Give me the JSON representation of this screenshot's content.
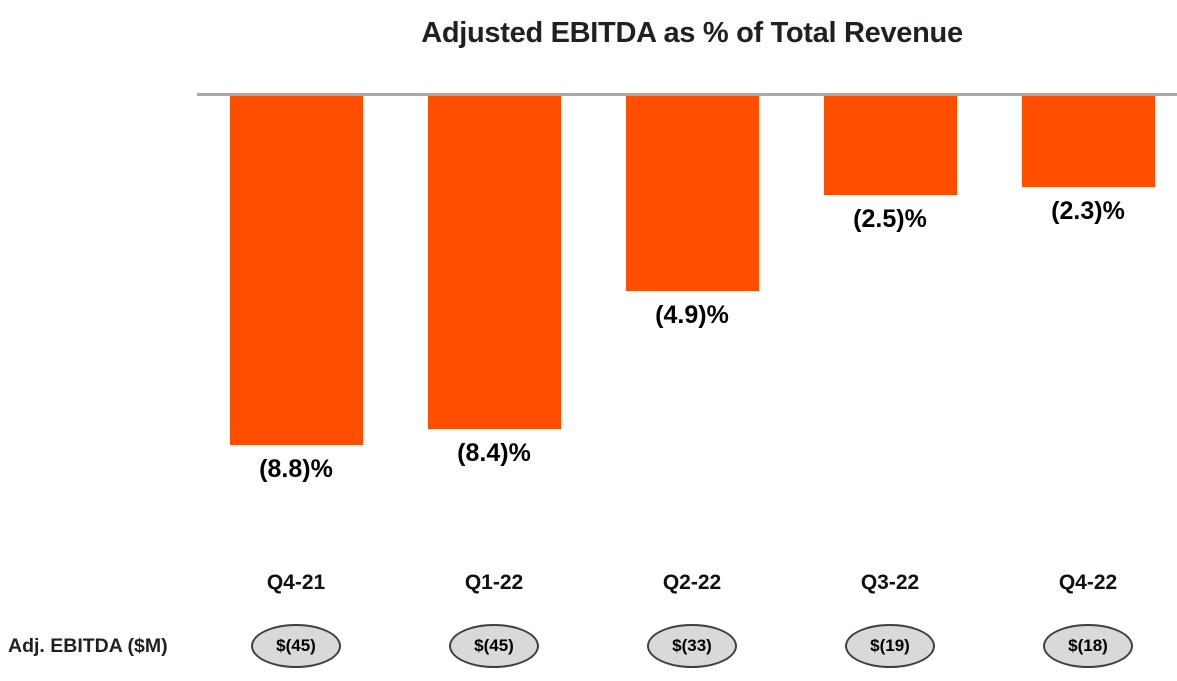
{
  "title": "Adjusted EBITDA as % of Total Revenue",
  "row_label": "Adj. EBITDA ($M)",
  "colors": {
    "bar": "#FF4E00",
    "axis_line": "#A9A9A9",
    "oval_fill": "#D9D9D9",
    "oval_border": "#3F3F3F",
    "title_text": "#231F20",
    "label_text": "#000000"
  },
  "chart_data": {
    "type": "bar",
    "title": "Adjusted EBITDA as % of Total Revenue",
    "xlabel": "",
    "ylabel": "",
    "categories": [
      "Q4-21",
      "Q1-22",
      "Q2-22",
      "Q3-22",
      "Q4-22"
    ],
    "series": [
      {
        "name": "Adjusted EBITDA as % of Total Revenue",
        "unit": "%",
        "values": [
          -8.8,
          -8.4,
          -4.9,
          -2.5,
          -2.3
        ],
        "labels": [
          "(8.8)%",
          "(8.4)%",
          "(4.9)%",
          "(2.5)%",
          "(2.3)%"
        ]
      },
      {
        "name": "Adj. EBITDA ($M)",
        "unit": "$M",
        "values": [
          -45,
          -45,
          -33,
          -19,
          -18
        ],
        "labels": [
          "$(45)",
          "$(45)",
          "$(33)",
          "$(19)",
          "$(18)"
        ]
      }
    ],
    "ylim": [
      -9.5,
      0
    ],
    "grid": false,
    "legend": false,
    "bar_orientation": "vertical-negative",
    "value_labels_position": "below-bar"
  }
}
